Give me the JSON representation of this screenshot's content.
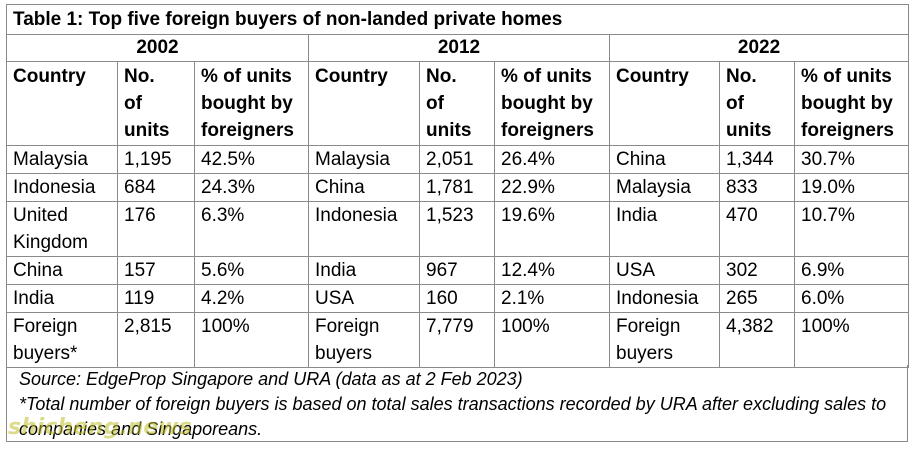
{
  "title": "Table 1: Top five foreign buyers of non-landed private homes",
  "years": [
    "2002",
    "2012",
    "2022"
  ],
  "headers": {
    "country": "Country",
    "units": [
      "No.",
      "of",
      "units"
    ],
    "pct": [
      "% of units",
      "bought by",
      "foreigners"
    ]
  },
  "rows": [
    [
      "Malaysia",
      "1,195",
      "42.5%",
      "Malaysia",
      "2,051",
      "26.4%",
      "China",
      "1,344",
      "30.7%"
    ],
    [
      "Indonesia",
      "684",
      "24.3%",
      "China",
      "1,781",
      "22.9%",
      "Malaysia",
      "833",
      "19.0%"
    ],
    [
      "United Kingdom",
      "176",
      "6.3%",
      "Indonesia",
      "1,523",
      "19.6%",
      "India",
      "470",
      "10.7%"
    ],
    [
      "China",
      "157",
      "5.6%",
      "India",
      "967",
      "12.4%",
      "USA",
      "302",
      "6.9%"
    ],
    [
      "India",
      "119",
      "4.2%",
      "USA",
      "160",
      "2.1%",
      "Indonesia",
      "265",
      "6.0%"
    ],
    [
      "Foreign buyers*",
      "2,815",
      "100%",
      "Foreign buyers",
      "7,779",
      "100%",
      "Foreign buyers",
      "4,382",
      "100%"
    ]
  ],
  "notes": {
    "source": "Source: EdgeProp Singapore and URA (data as at 2 Feb 2023)",
    "footnote_line1": "*Total number of foreign buyers is based on total sales transactions recorded by URA after excluding sales to",
    "footnote_line2": "companies and Singaporeans."
  },
  "watermark": "shicheng.news"
}
